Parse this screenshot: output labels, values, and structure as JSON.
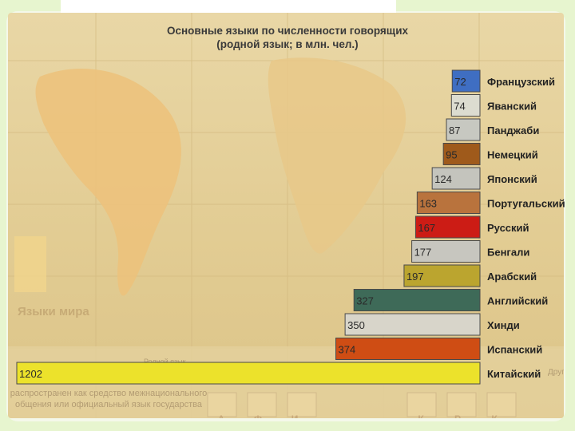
{
  "chart_data": {
    "type": "bar",
    "orientation": "horizontal",
    "title": "Основные языки по численности говорящих",
    "subtitle": "(родной язык; в млн. чел.)",
    "categories": [
      "Французский",
      "Яванский",
      "Панджаби",
      "Немецкий",
      "Японский",
      "Португальский",
      "Русский",
      "Бенгали",
      "Арабский",
      "Английский",
      "Хинди",
      "Испанский",
      "Китайский"
    ],
    "values": [
      72,
      74,
      87,
      95,
      124,
      163,
      167,
      177,
      197,
      327,
      350,
      374,
      1202
    ],
    "bar_colors": [
      "#3f6ec2",
      "#dcdcd0",
      "#c7c8c1",
      "#9f5a1b",
      "#c4c4bd",
      "#b9733d",
      "#cc1c15",
      "#c7c6bf",
      "#bba52f",
      "#3e6a58",
      "#d8d5ca",
      "#cf4d14",
      "#ece22b"
    ],
    "xlim": [
      0,
      1202
    ],
    "grid": false,
    "legend": "none"
  },
  "background_map": {
    "label": "Языки мира",
    "legend_text": "распространен как средство межнационального общения или официальный язык государства",
    "legend_small": "Родной язык",
    "legend_right": "Другой",
    "letters": [
      "А",
      "Ф",
      "И",
      "К",
      "Р",
      "К"
    ]
  }
}
